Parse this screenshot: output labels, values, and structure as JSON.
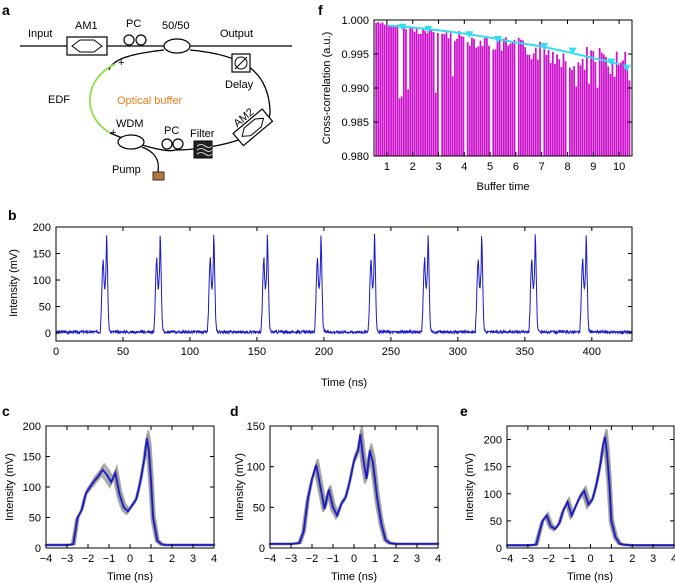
{
  "panel_labels": {
    "a": "a",
    "b": "b",
    "c": "c",
    "d": "d",
    "e": "e",
    "f": "f"
  },
  "schematic": {
    "input": "Input",
    "output": "Output",
    "am1": "AM1",
    "am2": "AM2",
    "pc_top": "PC",
    "pc_bottom": "PC",
    "coupler": "50/50",
    "delay": "Delay",
    "edf": "EDF",
    "optical_buffer": "Optical buffer",
    "wdm": "WDM",
    "filter": "Filter",
    "pump": "Pump",
    "colors": {
      "optical_buffer": "#f07c1c",
      "edf_fiber": "#8ee04a",
      "fiber": "#000000"
    }
  },
  "chart_data": [
    {
      "id": "f",
      "type": "bar",
      "xlabel": "Buffer time",
      "ylabel": "Cross-correlation (a.u.)",
      "ylim": [
        0.98,
        1.0
      ],
      "xlim": [
        0.5,
        10.5
      ],
      "xticks": [
        1,
        2,
        3,
        4,
        5,
        6,
        7,
        8,
        9,
        10
      ],
      "yticks": [
        "0.980",
        "0.985",
        "0.990",
        "0.995",
        "1.000"
      ],
      "bar_color": "#cc11cc",
      "trend_color": "#33ddee",
      "bar_envelope": {
        "start": 0.9998,
        "end": 0.9955,
        "min_dip": 0.988
      },
      "trend": {
        "x": [
          1,
          2,
          3,
          4,
          5,
          6,
          7,
          8,
          9,
          10
        ],
        "y": [
          0.9992,
          0.9989,
          0.9985,
          0.998,
          0.9974,
          0.9967,
          0.9961,
          0.9953,
          0.9944,
          0.9935
        ]
      },
      "markers": {
        "x": [
          1.6,
          2.6,
          4.2,
          5.3,
          7.1,
          8.2,
          9.7,
          10.3
        ],
        "y": [
          0.999,
          0.9987,
          0.9979,
          0.9972,
          0.9962,
          0.9955,
          0.9939,
          0.993
        ]
      }
    },
    {
      "id": "b",
      "type": "line",
      "xlabel": "Time (ns)",
      "ylabel": "Intensity (mV)",
      "xlim": [
        0,
        430
      ],
      "ylim": [
        -15,
        200
      ],
      "xticks": [
        0,
        50,
        100,
        150,
        200,
        250,
        300,
        350,
        400
      ],
      "yticks": [
        0,
        50,
        100,
        150,
        200
      ],
      "line_color": "#1a1acc",
      "pulse_starts": [
        33,
        73,
        113,
        153,
        193,
        233,
        273,
        313,
        353,
        391
      ],
      "pulse_shape": {
        "t": [
          0,
          0.8,
          1.3,
          1.8,
          2.3,
          2.8,
          3.3,
          3.8,
          4.3,
          4.8,
          5.3,
          5.8,
          6.3,
          6.8,
          7.8
        ],
        "y": [
          0,
          40,
          90,
          125,
          140,
          100,
          80,
          90,
          115,
          190,
          135,
          70,
          20,
          5,
          0
        ]
      },
      "baseline": 2
    },
    {
      "id": "c",
      "type": "line",
      "xlabel": "Time (ns)",
      "ylabel": "Intensity (mV)",
      "xlim": [
        -4,
        4
      ],
      "ylim": [
        0,
        200
      ],
      "xticks": [
        -4,
        -3,
        -2,
        -1,
        0,
        1,
        2,
        3,
        4
      ],
      "yticks": [
        0,
        50,
        100,
        150,
        200
      ],
      "line_color": "#1a1acc",
      "shade_color": "#8a8a8a",
      "x": [
        -4,
        -3,
        -2.7,
        -2.5,
        -2.3,
        -2.1,
        -1.9,
        -1.7,
        -1.5,
        -1.3,
        -1.1,
        -0.9,
        -0.7,
        -0.5,
        -0.3,
        -0.1,
        0.1,
        0.3,
        0.5,
        0.7,
        0.8,
        0.9,
        1.0,
        1.1,
        1.3,
        1.5,
        1.7,
        2,
        3,
        4
      ],
      "y": [
        5,
        5,
        6,
        50,
        62,
        90,
        100,
        110,
        118,
        128,
        120,
        108,
        123,
        88,
        67,
        60,
        70,
        80,
        110,
        150,
        180,
        160,
        110,
        50,
        12,
        6,
        5,
        5,
        5,
        5
      ]
    },
    {
      "id": "d",
      "type": "line",
      "xlabel": "Time (ns)",
      "ylabel": "Intensity (mV)",
      "xlim": [
        -4,
        4
      ],
      "ylim": [
        0,
        150
      ],
      "xticks": [
        -4,
        -3,
        -2,
        -1,
        0,
        1,
        2,
        3,
        4
      ],
      "yticks": [
        0,
        50,
        100,
        150
      ],
      "line_color": "#1a1acc",
      "shade_color": "#8a8a8a",
      "x": [
        -4,
        -3,
        -2.6,
        -2.4,
        -2.2,
        -2.0,
        -1.8,
        -1.6,
        -1.4,
        -1.2,
        -1.0,
        -0.8,
        -0.6,
        -0.4,
        -0.2,
        0,
        0.2,
        0.3,
        0.45,
        0.6,
        0.75,
        0.9,
        1.1,
        1.3,
        1.5,
        1.7,
        2,
        3,
        4
      ],
      "y": [
        5,
        5,
        6,
        20,
        60,
        85,
        102,
        75,
        48,
        72,
        50,
        40,
        55,
        62,
        82,
        108,
        120,
        140,
        108,
        85,
        120,
        105,
        62,
        30,
        10,
        6,
        5,
        5,
        5
      ]
    },
    {
      "id": "e",
      "type": "line",
      "xlabel": "Time (ns)",
      "ylabel": "Intensity (mV)",
      "xlim": [
        -4,
        4
      ],
      "ylim": [
        0,
        225
      ],
      "xticks": [
        -4,
        -3,
        -2,
        -1,
        0,
        1,
        2,
        3,
        4
      ],
      "yticks": [
        0,
        50,
        100,
        150,
        200
      ],
      "line_color": "#1a1acc",
      "shade_color": "#8a8a8a",
      "x": [
        -4,
        -3,
        -2.6,
        -2.3,
        -2.1,
        -1.9,
        -1.7,
        -1.5,
        -1.3,
        -1.1,
        -0.9,
        -0.7,
        -0.5,
        -0.3,
        -0.1,
        0.1,
        0.3,
        0.5,
        0.6,
        0.7,
        0.8,
        0.9,
        1.0,
        1.2,
        1.4,
        1.6,
        2,
        3,
        4
      ],
      "y": [
        5,
        5,
        6,
        50,
        60,
        40,
        35,
        45,
        70,
        85,
        60,
        78,
        95,
        105,
        80,
        90,
        120,
        160,
        190,
        205,
        170,
        120,
        50,
        20,
        8,
        6,
        5,
        5,
        5
      ]
    }
  ]
}
